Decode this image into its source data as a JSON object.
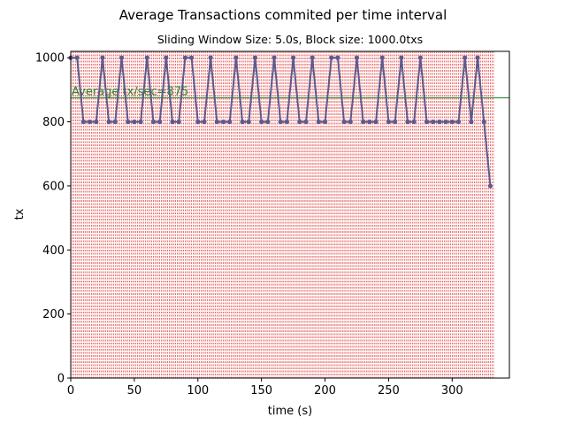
{
  "chart_data": {
    "type": "line",
    "title": "Average Transactions commited per time interval",
    "subtitle": "Sliding Window Size: 5.0s, Block size: 1000.0txs",
    "xlabel": "time (s)",
    "ylabel": "tx",
    "xlim": [
      0,
      345
    ],
    "ylim": [
      0,
      1020
    ],
    "x_ticks": [
      0,
      50,
      100,
      150,
      200,
      250,
      300
    ],
    "y_ticks": [
      0,
      200,
      400,
      600,
      800,
      1000
    ],
    "grid": false,
    "series": [
      {
        "x": [
          0,
          5,
          10,
          15,
          20,
          25,
          30,
          35,
          40,
          45,
          50,
          55,
          60,
          65,
          70,
          75,
          80,
          85,
          90,
          95,
          100,
          105,
          110,
          115,
          120,
          125,
          130,
          135,
          140,
          145,
          150,
          155,
          160,
          165,
          170,
          175,
          180,
          185,
          190,
          195,
          200,
          205,
          210,
          215,
          220,
          225,
          230,
          235,
          240,
          245,
          250,
          255,
          260,
          265,
          270,
          275,
          280,
          285,
          290,
          295,
          300,
          305,
          310,
          315,
          320,
          325,
          330
        ],
        "y": [
          1000,
          1000,
          800,
          800,
          800,
          1000,
          800,
          800,
          1000,
          800,
          800,
          800,
          1000,
          800,
          800,
          1000,
          800,
          800,
          1000,
          1000,
          800,
          800,
          1000,
          800,
          800,
          800,
          1000,
          800,
          800,
          1000,
          800,
          800,
          1000,
          800,
          800,
          1000,
          800,
          800,
          1000,
          800,
          800,
          1000,
          1000,
          800,
          800,
          1000,
          800,
          800,
          800,
          1000,
          800,
          800,
          1000,
          800,
          800,
          1000,
          800,
          800,
          800,
          800,
          800,
          800,
          1000,
          800,
          1000,
          800,
          600
        ],
        "color": "#5b5b8f"
      }
    ],
    "block_times_step": 1.25,
    "block_lines_color": "#e03030",
    "average": {
      "value": 875,
      "label": "Average tx/sec=875",
      "color": "#2a8a2a"
    }
  }
}
